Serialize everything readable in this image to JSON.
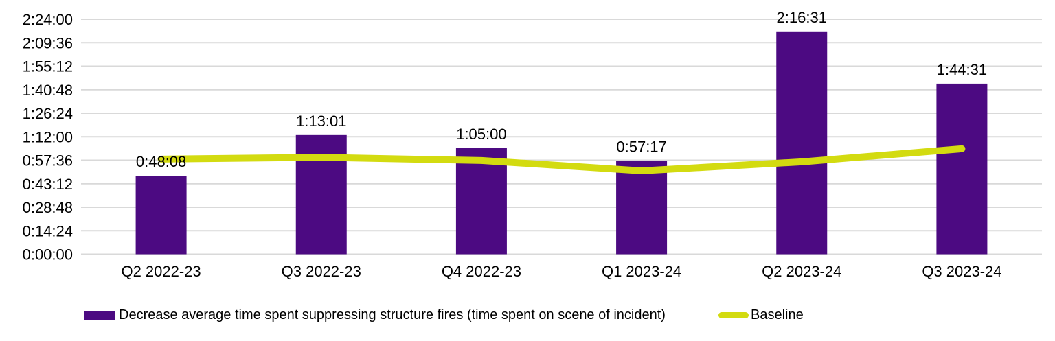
{
  "chart_data": {
    "type": "bar",
    "subtype": "combo-column-line",
    "title": "",
    "xlabel": "",
    "ylabel": "",
    "categories": [
      "Q2 2022-23",
      "Q3 2022-23",
      "Q4 2022-23",
      "Q1 2023-24",
      "Q2 2023-24",
      "Q3 2023-24"
    ],
    "series": [
      {
        "name": "Decrease average time spent suppressing structure fires (time spent on scene of incident)",
        "type": "column",
        "color": "#4C0A82",
        "values": [
          "0:48:08",
          "1:13:01",
          "1:05:00",
          "0:57:17",
          "2:16:31",
          "1:44:31"
        ],
        "data_labels": true
      },
      {
        "name": "Baseline",
        "type": "line",
        "color": "#D3DB10",
        "values": [
          "0:58:17",
          "0:59:20",
          "0:57:27",
          "0:51:08",
          "0:56:36",
          "1:04:36"
        ],
        "estimated_from_gridlines": true,
        "data_labels": false
      }
    ],
    "y_axis": {
      "min": "0:00:00",
      "max": "2:24:00",
      "tick_interval": "0:14:24",
      "ticks": [
        "2:24:00",
        "2:09:36",
        "1:55:12",
        "1:40:48",
        "1:26:24",
        "1:12:00",
        "0:57:36",
        "0:43:12",
        "0:28:48",
        "0:14:24",
        "0:00:00"
      ]
    },
    "grid": true,
    "gridline_color": "#D9D9D9",
    "text_color": "#000000",
    "background_color": "#FFFFFF",
    "legend_position": "bottom"
  },
  "legend": {
    "items": [
      {
        "label": "Decrease average time spent suppressing structure fires (time spent on scene of incident)",
        "swatch": "bar",
        "color": "#4C0A82"
      },
      {
        "label": "Baseline",
        "swatch": "line",
        "color": "#D3DB10"
      }
    ]
  }
}
